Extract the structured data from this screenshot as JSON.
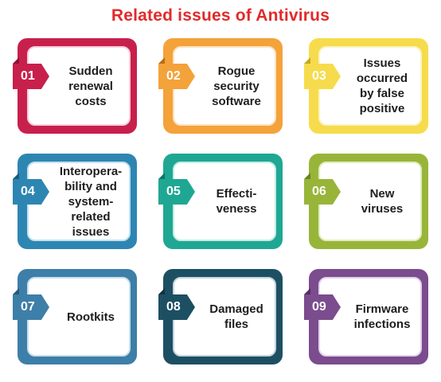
{
  "title": "Related issues of Antivirus",
  "items": [
    {
      "num": "01",
      "label": "Sudden\nrenewal\ncosts",
      "color": "#c8204c",
      "light": "#f7d0dc",
      "dark": "#8a1433"
    },
    {
      "num": "02",
      "label": "Rogue\nsecurity\nsoftware",
      "color": "#f4a23a",
      "light": "#fde2bf",
      "dark": "#b86e18"
    },
    {
      "num": "03",
      "label": "Issues\noccurred\nby false\npositive",
      "color": "#f6dc4c",
      "light": "#fcf3bf",
      "dark": "#c3a91e"
    },
    {
      "num": "04",
      "label": "Interopera-\nbility and\nsystem-\nrelated issues",
      "color": "#2d86b2",
      "light": "#c4e1ef",
      "dark": "#1a5b7c"
    },
    {
      "num": "05",
      "label": "Effecti-\nveness",
      "color": "#1fa793",
      "light": "#c2ece4",
      "dark": "#137565"
    },
    {
      "num": "06",
      "label": "New\nviruses",
      "color": "#98b53a",
      "light": "#e0ecbf",
      "dark": "#6a8320"
    },
    {
      "num": "07",
      "label": "Rootkits",
      "color": "#3d7fa8",
      "light": "#cbe0ed",
      "dark": "#285978"
    },
    {
      "num": "08",
      "label": "Damaged\nfiles",
      "color": "#1d4f63",
      "light": "#c4d6de",
      "dark": "#113241"
    },
    {
      "num": "09",
      "label": "Firmware\ninfections",
      "color": "#7b4c8e",
      "light": "#e2d2ea",
      "dark": "#52305f"
    }
  ]
}
